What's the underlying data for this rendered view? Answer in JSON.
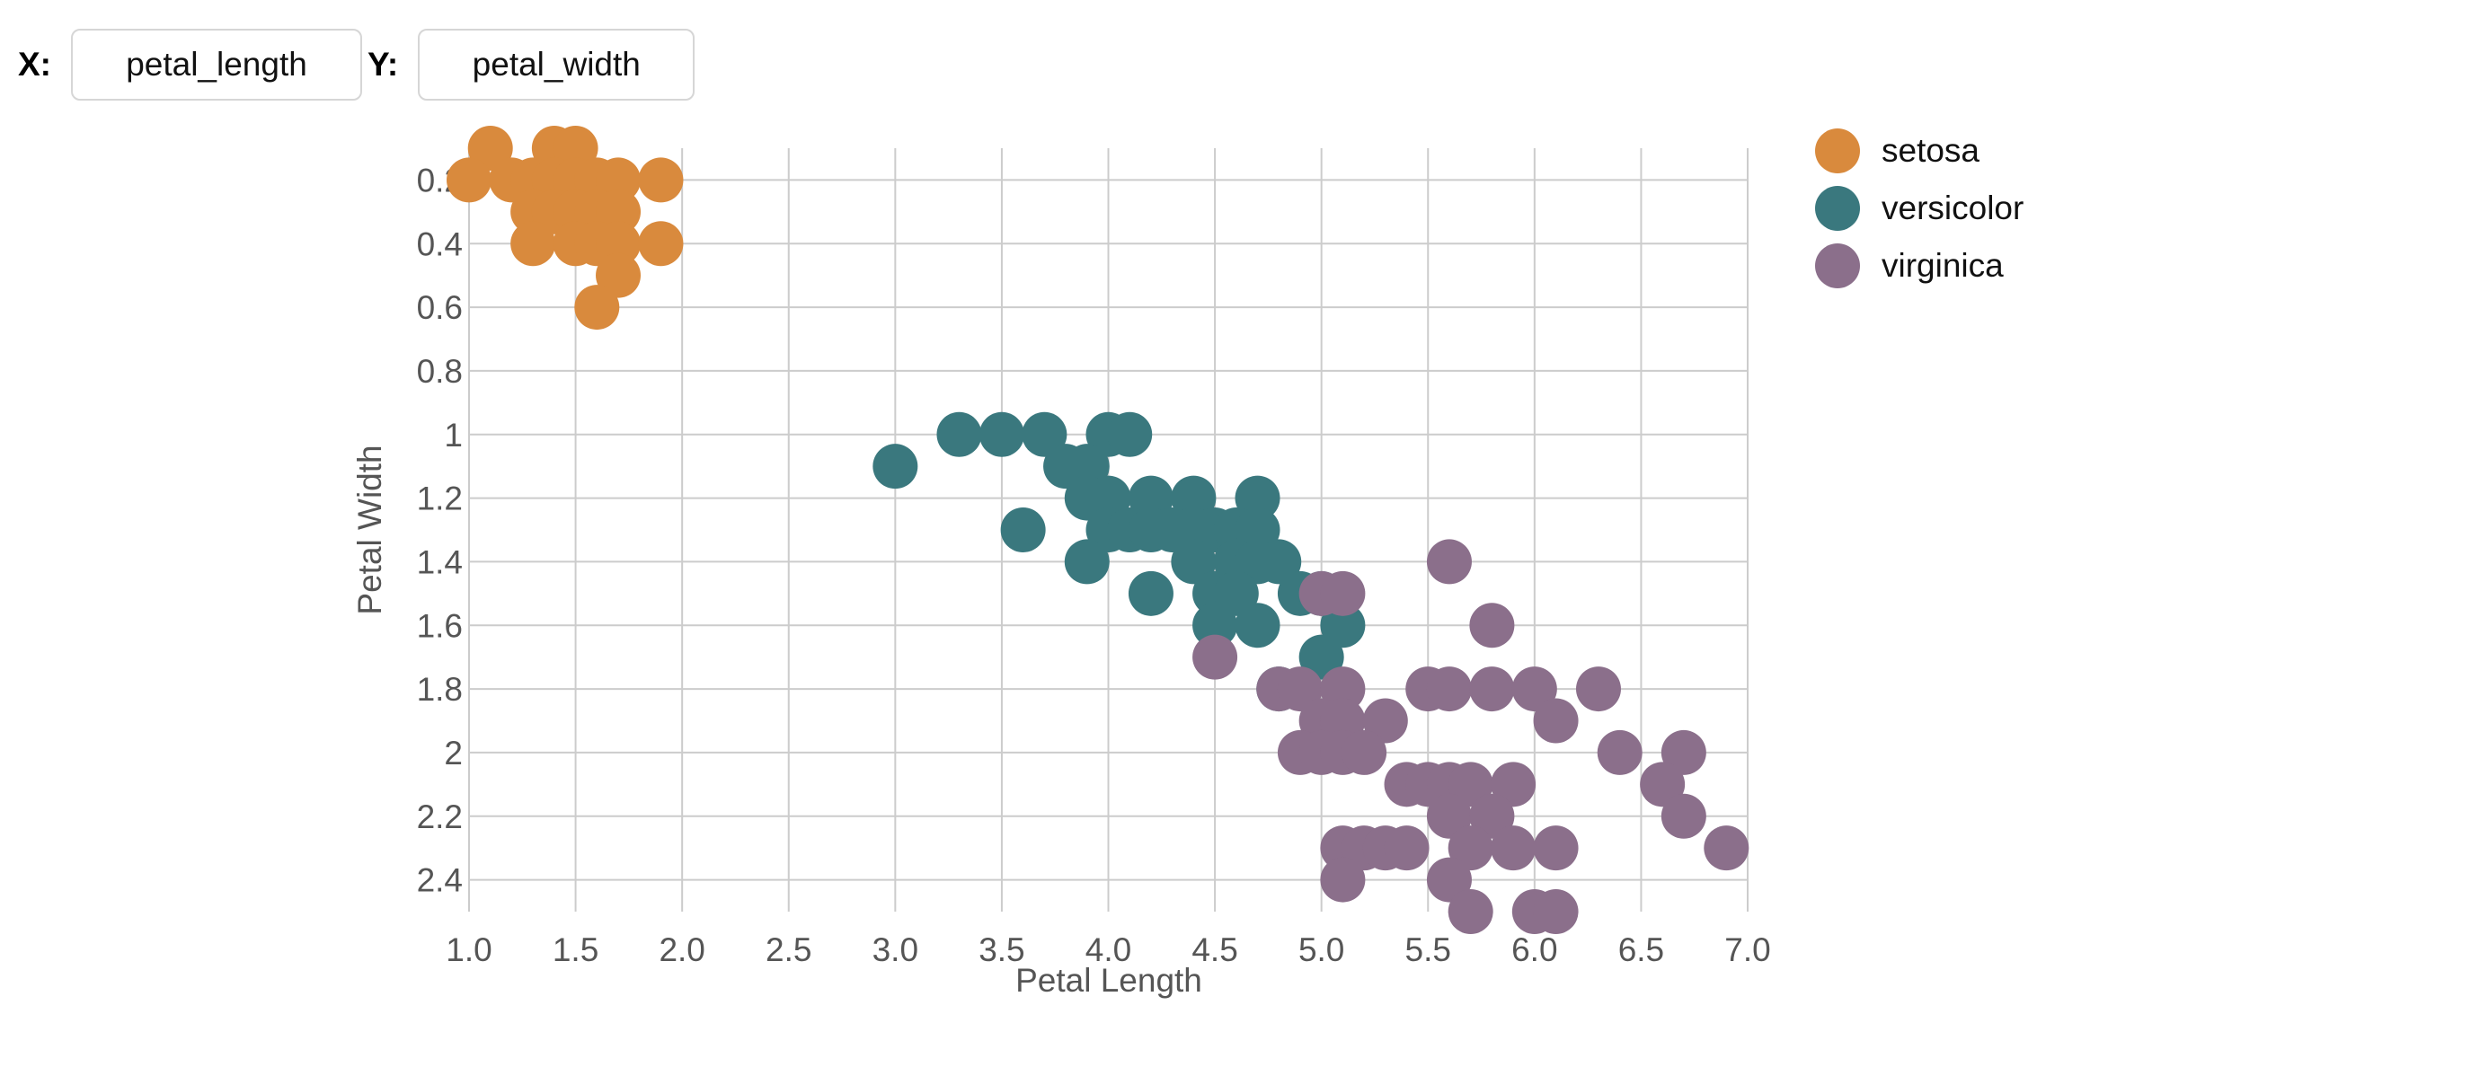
{
  "controls": {
    "x_label": "X:",
    "x_value": "petal_length",
    "y_label": "Y:",
    "y_value": "petal_width"
  },
  "colors": {
    "setosa": "#d98a3d",
    "versicolor": "#3a787e",
    "virginica": "#8b6f8b",
    "grid": "#cccccc",
    "tick_text": "#555555"
  },
  "chart_data": {
    "type": "scatter",
    "title": "",
    "xlabel": "Petal Length",
    "ylabel": "Petal Width",
    "xlim": [
      1.0,
      7.0
    ],
    "ylim": [
      0.1,
      2.5
    ],
    "y_inverted": true,
    "grid": true,
    "legend_position": "top-right",
    "x_ticks": [
      "1.0",
      "1.5",
      "2.0",
      "2.5",
      "3.0",
      "3.5",
      "4.0",
      "4.5",
      "5.0",
      "5.5",
      "6.0",
      "6.5",
      "7.0"
    ],
    "x_tick_values": [
      1.0,
      1.5,
      2.0,
      2.5,
      3.0,
      3.5,
      4.0,
      4.5,
      5.0,
      5.5,
      6.0,
      6.5,
      7.0
    ],
    "y_ticks": [
      "0.2",
      "0.4",
      "0.6",
      "0.8",
      "1",
      "1.2",
      "1.4",
      "1.6",
      "1.8",
      "2",
      "2.2",
      "2.4"
    ],
    "y_tick_values": [
      0.2,
      0.4,
      0.6,
      0.8,
      1.0,
      1.2,
      1.4,
      1.6,
      1.8,
      2.0,
      2.2,
      2.4
    ],
    "series": [
      {
        "name": "setosa",
        "points": [
          [
            1.1,
            0.1
          ],
          [
            1.4,
            0.1
          ],
          [
            1.5,
            0.1
          ],
          [
            1.0,
            0.2
          ],
          [
            1.2,
            0.2
          ],
          [
            1.3,
            0.2
          ],
          [
            1.4,
            0.2
          ],
          [
            1.5,
            0.2
          ],
          [
            1.6,
            0.2
          ],
          [
            1.7,
            0.2
          ],
          [
            1.9,
            0.2
          ],
          [
            1.3,
            0.3
          ],
          [
            1.4,
            0.3
          ],
          [
            1.5,
            0.3
          ],
          [
            1.6,
            0.3
          ],
          [
            1.7,
            0.3
          ],
          [
            1.3,
            0.4
          ],
          [
            1.5,
            0.4
          ],
          [
            1.6,
            0.4
          ],
          [
            1.7,
            0.4
          ],
          [
            1.9,
            0.4
          ],
          [
            1.7,
            0.5
          ],
          [
            1.6,
            0.6
          ]
        ]
      },
      {
        "name": "versicolor",
        "points": [
          [
            3.3,
            1.0
          ],
          [
            3.5,
            1.0
          ],
          [
            3.7,
            1.0
          ],
          [
            4.0,
            1.0
          ],
          [
            4.1,
            1.0
          ],
          [
            3.0,
            1.1
          ],
          [
            3.8,
            1.1
          ],
          [
            3.9,
            1.1
          ],
          [
            3.9,
            1.2
          ],
          [
            4.0,
            1.2
          ],
          [
            4.2,
            1.2
          ],
          [
            4.4,
            1.2
          ],
          [
            4.7,
            1.2
          ],
          [
            3.6,
            1.3
          ],
          [
            4.0,
            1.3
          ],
          [
            4.1,
            1.3
          ],
          [
            4.2,
            1.3
          ],
          [
            4.3,
            1.3
          ],
          [
            4.4,
            1.3
          ],
          [
            4.5,
            1.3
          ],
          [
            4.6,
            1.3
          ],
          [
            4.7,
            1.3
          ],
          [
            3.9,
            1.4
          ],
          [
            4.4,
            1.4
          ],
          [
            4.6,
            1.4
          ],
          [
            4.7,
            1.4
          ],
          [
            4.8,
            1.4
          ],
          [
            4.2,
            1.5
          ],
          [
            4.5,
            1.5
          ],
          [
            4.6,
            1.5
          ],
          [
            4.9,
            1.5
          ],
          [
            5.0,
            1.5
          ],
          [
            4.5,
            1.6
          ],
          [
            4.7,
            1.6
          ],
          [
            5.1,
            1.6
          ],
          [
            5.0,
            1.7
          ],
          [
            4.8,
            1.8
          ]
        ]
      },
      {
        "name": "virginica",
        "points": [
          [
            5.6,
            1.4
          ],
          [
            5.0,
            1.5
          ],
          [
            5.1,
            1.5
          ],
          [
            5.8,
            1.6
          ],
          [
            4.5,
            1.7
          ],
          [
            4.8,
            1.8
          ],
          [
            4.9,
            1.8
          ],
          [
            5.1,
            1.8
          ],
          [
            5.5,
            1.8
          ],
          [
            5.6,
            1.8
          ],
          [
            5.8,
            1.8
          ],
          [
            6.0,
            1.8
          ],
          [
            6.3,
            1.8
          ],
          [
            5.0,
            1.9
          ],
          [
            5.1,
            1.9
          ],
          [
            5.3,
            1.9
          ],
          [
            6.1,
            1.9
          ],
          [
            4.9,
            2.0
          ],
          [
            5.0,
            2.0
          ],
          [
            5.1,
            2.0
          ],
          [
            5.2,
            2.0
          ],
          [
            6.4,
            2.0
          ],
          [
            6.7,
            2.0
          ],
          [
            5.4,
            2.1
          ],
          [
            5.5,
            2.1
          ],
          [
            5.6,
            2.1
          ],
          [
            5.7,
            2.1
          ],
          [
            5.9,
            2.1
          ],
          [
            6.6,
            2.1
          ],
          [
            5.6,
            2.2
          ],
          [
            5.8,
            2.2
          ],
          [
            6.7,
            2.2
          ],
          [
            5.1,
            2.3
          ],
          [
            5.2,
            2.3
          ],
          [
            5.3,
            2.3
          ],
          [
            5.4,
            2.3
          ],
          [
            5.7,
            2.3
          ],
          [
            5.9,
            2.3
          ],
          [
            6.1,
            2.3
          ],
          [
            6.9,
            2.3
          ],
          [
            5.1,
            2.4
          ],
          [
            5.6,
            2.4
          ],
          [
            5.7,
            2.5
          ],
          [
            6.0,
            2.5
          ],
          [
            6.1,
            2.5
          ]
        ]
      }
    ]
  }
}
